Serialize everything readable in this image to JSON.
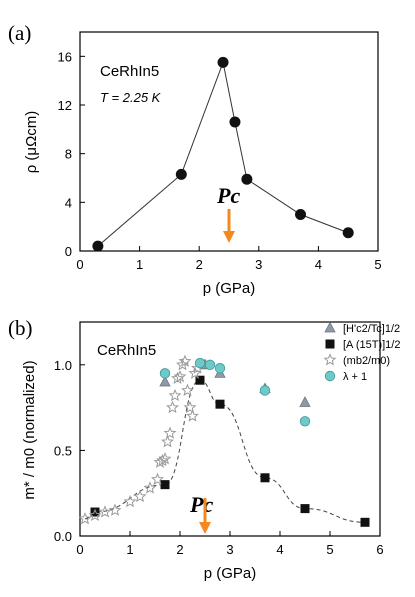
{
  "chart_data": [
    {
      "type": "line",
      "panel_label": "(a)",
      "sample_label": "CeRhIn5",
      "condition_label": "T = 2.25 K",
      "xlabel": "p (GPa)",
      "ylabel": "ρ (μΩcm)",
      "xlim": [
        0,
        5
      ],
      "ylim": [
        0,
        18
      ],
      "xticks": [
        "0",
        "1",
        "2",
        "3",
        "4",
        "5"
      ],
      "yticks": [
        "0",
        "4",
        "8",
        "12",
        "16"
      ],
      "pc_label": "Pc",
      "pc_x": 2.5,
      "series": [
        {
          "x": [
            0.3,
            1.7,
            2.4,
            2.6,
            2.8,
            3.7,
            4.5
          ],
          "y": [
            0.4,
            6.3,
            15.5,
            10.6,
            5.9,
            3.0,
            1.5
          ]
        }
      ]
    },
    {
      "type": "scatter",
      "panel_label": "(b)",
      "sample_label": "CeRhIn5",
      "xlabel": "p (GPa)",
      "ylabel": "m* / m0 (normalized)",
      "xlim": [
        0,
        6
      ],
      "ylim": [
        0,
        1.25
      ],
      "xticks": [
        "0",
        "1",
        "2",
        "3",
        "4",
        "5",
        "6"
      ],
      "yticks": [
        "0.0",
        "0.5",
        "1.0"
      ],
      "pc_label": "Pc",
      "pc_x": 2.5,
      "legend_position": "top-right",
      "series": [
        {
          "name": "[H'c2/Tc]1/2",
          "marker": "triangle",
          "color": "#8e9ba6",
          "x": [
            1.7,
            2.5,
            2.8,
            3.7,
            4.5
          ],
          "y": [
            0.9,
            1.0,
            0.95,
            0.86,
            0.78
          ]
        },
        {
          "name": "[A (15T)]1/2",
          "marker": "square",
          "color": "#111111",
          "dashed_fit": true,
          "x": [
            0.3,
            1.7,
            2.4,
            2.8,
            3.7,
            4.5,
            5.7
          ],
          "y": [
            0.14,
            0.3,
            0.91,
            0.77,
            0.34,
            0.16,
            0.08
          ]
        },
        {
          "name": "(mb2/m0)",
          "marker": "star",
          "color": "#9a9a9a",
          "x": [
            0.1,
            0.3,
            0.5,
            0.7,
            1.0,
            1.2,
            1.4,
            1.55,
            1.6,
            1.65,
            1.7,
            1.75,
            1.8,
            1.85,
            1.9,
            1.95,
            2.0,
            2.05,
            2.1,
            2.15,
            2.2,
            2.25,
            2.3,
            2.35
          ],
          "y": [
            0.1,
            0.12,
            0.14,
            0.15,
            0.2,
            0.23,
            0.28,
            0.33,
            0.43,
            0.44,
            0.45,
            0.55,
            0.6,
            0.75,
            0.82,
            0.92,
            0.93,
            1.0,
            1.02,
            0.85,
            0.75,
            0.7,
            0.95,
            0.98
          ]
        },
        {
          "name": "λ + 1",
          "marker": "circle",
          "color": "#6fc9c9",
          "x": [
            1.7,
            2.4,
            2.6,
            2.8,
            3.7,
            4.5
          ],
          "y": [
            0.95,
            1.01,
            1.0,
            0.98,
            0.85,
            0.67
          ]
        }
      ]
    }
  ]
}
